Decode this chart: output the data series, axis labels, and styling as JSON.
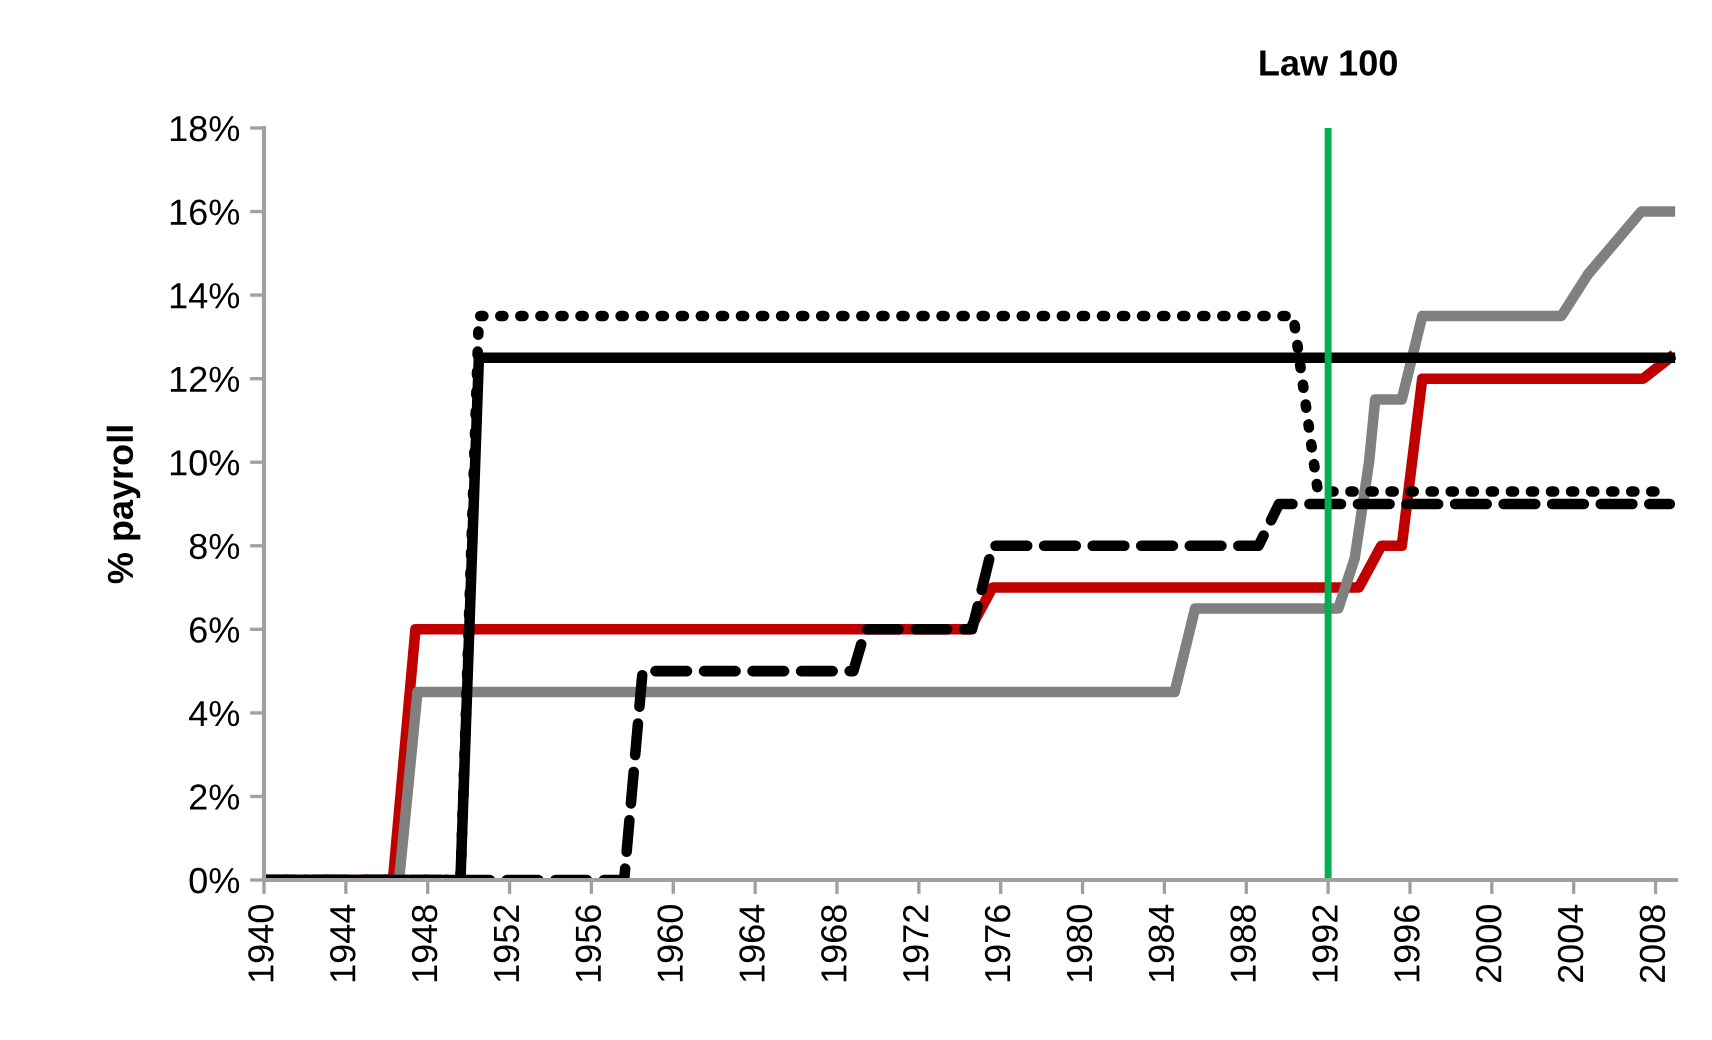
{
  "chart_data": {
    "type": "line",
    "ylabel": "% payroll",
    "xlim": [
      1940,
      2009
    ],
    "xticks": [
      1940,
      1944,
      1948,
      1952,
      1956,
      1960,
      1964,
      1968,
      1972,
      1976,
      1980,
      1984,
      1988,
      1992,
      1996,
      2000,
      2004,
      2008
    ],
    "ylim": [
      0,
      18
    ],
    "yticks": [
      {
        "value": 0,
        "label": "0%"
      },
      {
        "value": 2,
        "label": "2%"
      },
      {
        "value": 4,
        "label": "4%"
      },
      {
        "value": 6,
        "label": "6%"
      },
      {
        "value": 8,
        "label": "8%"
      },
      {
        "value": 10,
        "label": "10%"
      },
      {
        "value": 12,
        "label": "12%"
      },
      {
        "value": 14,
        "label": "14%"
      },
      {
        "value": 16,
        "label": "16%"
      },
      {
        "value": 18,
        "label": "18%"
      }
    ],
    "grid": false,
    "series": [
      {
        "color": "#c00000",
        "line_style": "solid",
        "x": [
          1940,
          1946.3,
          1947.4,
          1974.5,
          1975.6,
          1993.5,
          1994.6,
          1995.6,
          1996.6,
          2007.4,
          2008.7
        ],
        "values": [
          0,
          0,
          6,
          6,
          7,
          7,
          8,
          8,
          12,
          12,
          12.5
        ]
      },
      {
        "color": "#808080",
        "line_style": "solid",
        "x": [
          1940,
          1946.6,
          1947.5,
          1984.5,
          1985.5,
          1992.5,
          1993.3,
          1994.0,
          1994.3,
          1995.6,
          1996.6,
          2003.4,
          2004.7,
          2007.3,
          2008.7
        ],
        "values": [
          0,
          0,
          4.5,
          4.5,
          6.5,
          6.5,
          7.7,
          10,
          11.5,
          11.5,
          13.5,
          13.5,
          14.5,
          16,
          16
        ]
      },
      {
        "color": "#000000",
        "line_style": "solid",
        "x": [
          1940,
          1949.6,
          1950.5,
          2008.7
        ],
        "values": [
          0,
          0,
          12.5,
          12.5
        ]
      },
      {
        "color": "#000000",
        "line_style": "dotted",
        "x": [
          1940,
          1949.6,
          1950.5,
          1990.3,
          1991.5,
          2008.7
        ],
        "values": [
          0,
          0,
          13.5,
          13.5,
          9.3,
          9.3
        ]
      },
      {
        "color": "#000000",
        "line_style": "dashed",
        "x": [
          1940,
          1957.6,
          1958.5,
          1968.8,
          1969.4,
          1974.6,
          1975.6,
          1988.6,
          1989.6,
          2008.7
        ],
        "values": [
          0,
          0,
          5,
          5,
          6,
          6,
          8,
          8,
          9,
          9
        ]
      }
    ],
    "ref_lines": [
      {
        "axis": "x",
        "value": 1992,
        "label": "Law 100",
        "color": "#00b050",
        "line_style": "solid"
      }
    ]
  }
}
